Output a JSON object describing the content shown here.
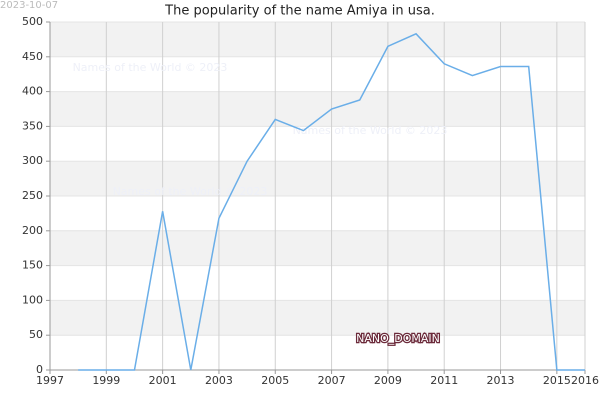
{
  "chart_data": {
    "type": "line",
    "title": "The popularity of the name Amiya in usa.",
    "date_stamp": "2023-10-07",
    "watermarks": [
      "Names of the World © 2023",
      "Names of the World © 2023",
      "Names of the World © 2023"
    ],
    "label": "NANO_DOMAIN",
    "x": [
      1998,
      1999,
      2000,
      2001,
      2002,
      2003,
      2004,
      2005,
      2006,
      2007,
      2008,
      2009,
      2010,
      2011,
      2012,
      2013,
      2014,
      2015,
      2016
    ],
    "series": [
      {
        "name": "Amiya",
        "color": "#6aaee8",
        "values": [
          0,
          0,
          0,
          228,
          0,
          218,
          300,
          360,
          344,
          375,
          388,
          465,
          483,
          440,
          423,
          436,
          436,
          0,
          0
        ]
      }
    ],
    "xlim": [
      1997,
      2016
    ],
    "xticks": [
      1997,
      1999,
      2001,
      2003,
      2005,
      2007,
      2009,
      2011,
      2013,
      2015,
      2016
    ],
    "ylim": [
      0,
      500
    ],
    "yticks": [
      0,
      50,
      100,
      150,
      200,
      250,
      300,
      350,
      400,
      450,
      500
    ],
    "grid": true
  }
}
